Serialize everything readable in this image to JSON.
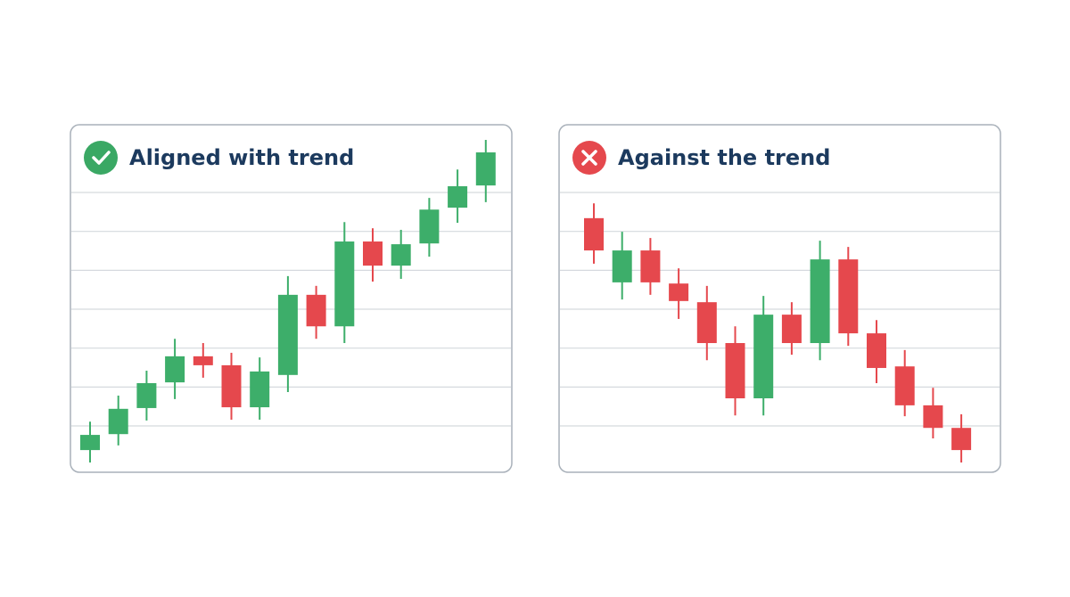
{
  "chart_data": [
    {
      "type": "candlestick",
      "title": "Aligned with trend",
      "icon": "check",
      "icon_color": "#3aa864",
      "up_color": "#3dae6a",
      "down_color": "#e5484d",
      "ylim": [
        0,
        8.5
      ],
      "yticks": [
        1,
        2,
        3,
        4,
        5,
        6,
        7
      ],
      "grid": true,
      "open": [
        0.38,
        0.79,
        1.46,
        2.12,
        2.79,
        2.56,
        1.48,
        2.31,
        4.37,
        3.56,
        5.74,
        5.12,
        5.69,
        6.61,
        7.18
      ],
      "high": [
        1.11,
        1.78,
        2.42,
        3.24,
        3.13,
        2.88,
        2.76,
        4.85,
        4.6,
        6.24,
        6.08,
        6.04,
        6.86,
        7.59,
        8.35
      ],
      "low": [
        0.06,
        0.5,
        1.14,
        1.69,
        2.24,
        1.16,
        1.16,
        1.87,
        3.24,
        3.13,
        4.71,
        4.78,
        5.35,
        6.22,
        6.75
      ],
      "close": [
        0.77,
        1.44,
        2.1,
        2.79,
        2.56,
        1.48,
        2.4,
        4.37,
        3.56,
        5.74,
        5.12,
        5.67,
        6.56,
        7.16,
        8.03
      ]
    },
    {
      "type": "candlestick",
      "title": "Against the trend",
      "icon": "cross",
      "icon_color": "#e5484d",
      "up_color": "#3dae6a",
      "down_color": "#e5484d",
      "ylim": [
        0,
        8.5
      ],
      "yticks": [
        1,
        2,
        3,
        4,
        5,
        6,
        7
      ],
      "grid": true,
      "open": [
        6.34,
        4.69,
        5.51,
        4.66,
        4.18,
        3.13,
        1.71,
        3.86,
        3.13,
        5.28,
        3.38,
        2.53,
        1.53,
        0.95
      ],
      "high": [
        6.72,
        5.99,
        5.83,
        5.05,
        4.6,
        3.56,
        4.34,
        4.18,
        5.76,
        5.6,
        3.72,
        2.95,
        1.98,
        1.3
      ],
      "low": [
        5.17,
        4.25,
        4.37,
        3.75,
        2.69,
        1.27,
        1.27,
        2.83,
        2.69,
        3.06,
        2.1,
        1.25,
        0.68,
        0.06
      ],
      "close": [
        5.51,
        5.51,
        4.69,
        4.21,
        3.13,
        1.71,
        3.86,
        3.13,
        5.28,
        3.38,
        2.49,
        1.53,
        0.95,
        0.38
      ]
    }
  ]
}
